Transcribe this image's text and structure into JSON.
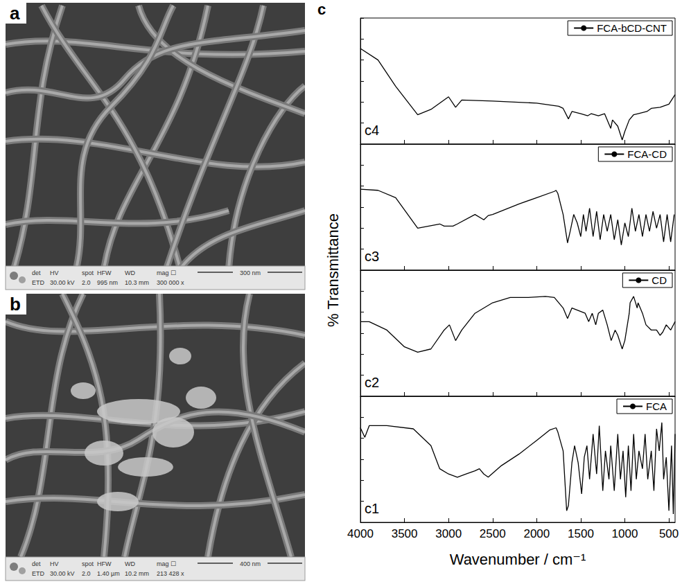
{
  "micrographs": [
    {
      "letter": "a",
      "header": [
        "det",
        "HV",
        "spot",
        "HFW",
        "WD",
        "mag ☐"
      ],
      "values": [
        "ETD",
        "30.00 kV",
        "2.0",
        "995 nm",
        "10.3 mm",
        "300 000 x"
      ],
      "scale_bar": "300 nm"
    },
    {
      "letter": "b",
      "header": [
        "det",
        "HV",
        "spot",
        "HFW",
        "WD",
        "mag ☐"
      ],
      "values": [
        "ETD",
        "30.00 kV",
        "2.0",
        "1.40 µm",
        "10.2 mm",
        "213 428 x"
      ],
      "scale_bar": "400 nm"
    }
  ],
  "chart_letter": "c",
  "chart_data": [
    {
      "type": "line",
      "annotations": [
        "c4"
      ],
      "legend": "upper right",
      "grid": false,
      "tick_labels": false,
      "xlim": [
        4000,
        430
      ],
      "xticks": [
        4000,
        3500,
        3000,
        2500,
        2000,
        1500,
        1000,
        500
      ],
      "ylim": [
        0,
        120
      ],
      "yticks": [
        0,
        20,
        40,
        60,
        80,
        100,
        120
      ],
      "x": [
        4000,
        3800,
        3600,
        3350,
        3200,
        3000,
        2920,
        2850,
        2500,
        2000,
        1750,
        1700,
        1640,
        1600,
        1500,
        1420,
        1380,
        1300,
        1230,
        1160,
        1140,
        1080,
        1030,
        1000,
        950,
        900,
        850,
        750,
        700,
        600,
        500,
        430
      ],
      "series": [
        {
          "name": "FCA-bCD-CNT",
          "color": "#000000",
          "values": [
            91,
            80,
            55,
            28,
            33,
            45,
            35,
            42,
            41,
            39,
            36,
            34,
            24,
            31,
            29,
            27,
            29,
            27,
            29,
            15,
            23,
            17,
            4,
            12,
            23,
            28,
            29,
            31,
            34,
            35,
            38,
            47
          ]
        }
      ]
    },
    {
      "type": "line",
      "annotations": [
        "c3"
      ],
      "legend": "upper right",
      "grid": false,
      "tick_labels": false,
      "xlim": [
        4000,
        430
      ],
      "xticks": [
        4000,
        3500,
        3000,
        2500,
        2000,
        1500,
        1000,
        500
      ],
      "ylim": [
        0,
        120
      ],
      "yticks": [
        0,
        20,
        40,
        60,
        80,
        100,
        120
      ],
      "x": [
        4000,
        3800,
        3600,
        3350,
        3100,
        3050,
        2950,
        2900,
        2700,
        2600,
        2550,
        2500,
        2200,
        2000,
        1800,
        1780,
        1760,
        1700,
        1650,
        1620,
        1580,
        1540,
        1500,
        1470,
        1440,
        1400,
        1360,
        1320,
        1280,
        1240,
        1200,
        1160,
        1120,
        1080,
        1040,
        1000,
        960,
        920,
        880,
        840,
        800,
        760,
        720,
        680,
        640,
        600,
        560,
        520,
        480,
        440
      ],
      "series": [
        {
          "name": "FCA-CD",
          "color": "#000000",
          "values": [
            77,
            76,
            69,
            40,
            44,
            42,
            42,
            44,
            53,
            48,
            52,
            53,
            63,
            69,
            75,
            76,
            73,
            53,
            26,
            37,
            53,
            45,
            32,
            53,
            37,
            59,
            32,
            56,
            29,
            53,
            37,
            53,
            29,
            48,
            24,
            45,
            32,
            59,
            37,
            53,
            32,
            53,
            37,
            56,
            40,
            53,
            27,
            53,
            27,
            53
          ]
        }
      ]
    },
    {
      "type": "line",
      "annotations": [
        "c2"
      ],
      "legend": "upper right",
      "grid": false,
      "tick_labels": false,
      "xlim": [
        4000,
        430
      ],
      "xticks": [
        4000,
        3500,
        3000,
        2500,
        2000,
        1500,
        1000,
        500
      ],
      "ylim": [
        0,
        120
      ],
      "yticks": [
        0,
        20,
        40,
        60,
        80,
        100,
        120
      ],
      "x": [
        4000,
        3900,
        3700,
        3500,
        3350,
        3200,
        3050,
        2990,
        2920,
        2850,
        2700,
        2500,
        2300,
        2100,
        1900,
        1800,
        1700,
        1650,
        1600,
        1450,
        1410,
        1370,
        1330,
        1300,
        1250,
        1200,
        1155,
        1110,
        1080,
        1030,
        1000,
        950,
        940,
        900,
        860,
        850,
        800,
        760,
        700,
        640,
        600,
        570,
        530,
        480,
        430
      ],
      "series": [
        {
          "name": "CD",
          "color": "#000000",
          "values": [
            71,
            71,
            63,
            47,
            42,
            45,
            63,
            68,
            53,
            63,
            79,
            89,
            94,
            94,
            95,
            94,
            84,
            74,
            84,
            79,
            71,
            79,
            68,
            79,
            82,
            68,
            53,
            63,
            58,
            45,
            53,
            79,
            89,
            95,
            84,
            89,
            79,
            68,
            63,
            63,
            58,
            61,
            68,
            63,
            71
          ]
        }
      ]
    },
    {
      "type": "line",
      "annotations": [
        "c1"
      ],
      "legend": "upper right",
      "grid": false,
      "tick_labels": "x",
      "xlabel": "Wavenumber / cm⁻¹",
      "ylabel": "% Transmittance",
      "xlim": [
        4000,
        430
      ],
      "xticks": [
        4000,
        3500,
        3000,
        2500,
        2000,
        1500,
        1000,
        500
      ],
      "ylim": [
        0,
        120
      ],
      "yticks": [
        0,
        20,
        40,
        60,
        80,
        100,
        120
      ],
      "x": [
        4000,
        3950,
        3900,
        3700,
        3400,
        3200,
        3100,
        3000,
        2900,
        2800,
        2700,
        2650,
        2600,
        2550,
        2400,
        2200,
        2000,
        1850,
        1780,
        1760,
        1700,
        1660,
        1640,
        1600,
        1570,
        1530,
        1490,
        1460,
        1430,
        1400,
        1360,
        1320,
        1290,
        1250,
        1220,
        1180,
        1160,
        1120,
        1080,
        1050,
        1020,
        990,
        960,
        930,
        900,
        870,
        840,
        800,
        770,
        740,
        700,
        670,
        640,
        610,
        580,
        560,
        530,
        500,
        470,
        450,
        430
      ],
      "series": [
        {
          "name": "FCA",
          "color": "#000000",
          "values": [
            90,
            81,
            92,
            92,
            89,
            73,
            51,
            46,
            43,
            46,
            49,
            51,
            46,
            43,
            54,
            65,
            78,
            88,
            90,
            86,
            68,
            11,
            16,
            57,
            73,
            57,
            27,
            62,
            73,
            41,
            84,
            46,
            92,
            30,
            68,
            41,
            73,
            30,
            84,
            41,
            68,
            24,
            73,
            30,
            84,
            41,
            68,
            51,
            84,
            41,
            68,
            30,
            89,
            68,
            95,
            41,
            62,
            11,
            73,
            8,
            84
          ]
        }
      ]
    }
  ]
}
